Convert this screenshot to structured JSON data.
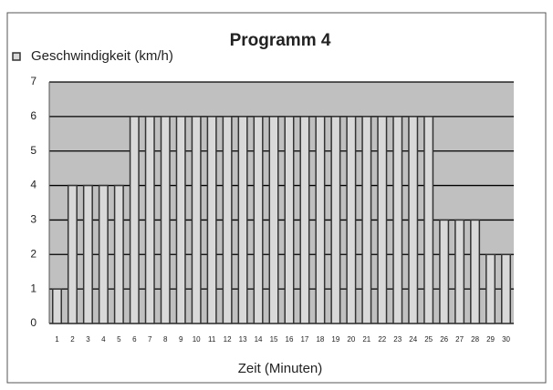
{
  "chart_data": {
    "type": "bar",
    "title": "Programm 4",
    "xlabel": "Zeit (Minuten)",
    "categories": [
      "1",
      "2",
      "3",
      "4",
      "5",
      "6",
      "7",
      "8",
      "9",
      "10",
      "11",
      "12",
      "13",
      "14",
      "15",
      "16",
      "17",
      "18",
      "19",
      "20",
      "21",
      "22",
      "23",
      "24",
      "25",
      "26",
      "27",
      "28",
      "29",
      "30"
    ],
    "series": [
      {
        "name": "Geschwindigkeit (km/h)",
        "color": "#d9d9d9",
        "values": [
          1,
          4,
          4,
          4,
          4,
          6,
          6,
          6,
          6,
          6,
          6,
          6,
          6,
          6,
          6,
          6,
          6,
          6,
          6,
          6,
          6,
          6,
          6,
          6,
          6,
          3,
          3,
          3,
          2,
          2
        ]
      }
    ],
    "ylim": [
      0,
      7
    ],
    "yticks": [
      0,
      1,
      2,
      3,
      4,
      5,
      6,
      7
    ],
    "grid": true,
    "legend": "top-left"
  }
}
